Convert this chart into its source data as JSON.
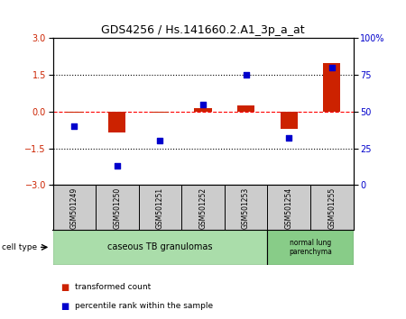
{
  "title": "GDS4256 / Hs.141660.2.A1_3p_a_at",
  "samples": [
    "GSM501249",
    "GSM501250",
    "GSM501251",
    "GSM501252",
    "GSM501253",
    "GSM501254",
    "GSM501255"
  ],
  "transformed_count": [
    -0.04,
    -0.85,
    -0.03,
    0.15,
    0.25,
    -0.72,
    2.0
  ],
  "percentile_rank": [
    40,
    13,
    30,
    55,
    75,
    32,
    80
  ],
  "ylim_left": [
    -3,
    3
  ],
  "ylim_right": [
    0,
    100
  ],
  "yticks_left": [
    -3,
    -1.5,
    0,
    1.5,
    3
  ],
  "yticks_right": [
    0,
    25,
    50,
    75,
    100
  ],
  "bar_color": "#cc2200",
  "dot_color": "#0000cc",
  "group1_label": "caseous TB granulomas",
  "group1_samples": [
    0,
    1,
    2,
    3,
    4
  ],
  "group2_label": "normal lung\nparenchyma",
  "group2_samples": [
    5,
    6
  ],
  "group1_color": "#aaddaa",
  "group2_color": "#88cc88",
  "cell_type_label": "cell type",
  "legend1_label": "transformed count",
  "legend2_label": "percentile rank within the sample",
  "background_color": "#ffffff",
  "plot_bg_color": "#ffffff",
  "sample_label_bg": "#cccccc",
  "sample_label_border": "#888888"
}
